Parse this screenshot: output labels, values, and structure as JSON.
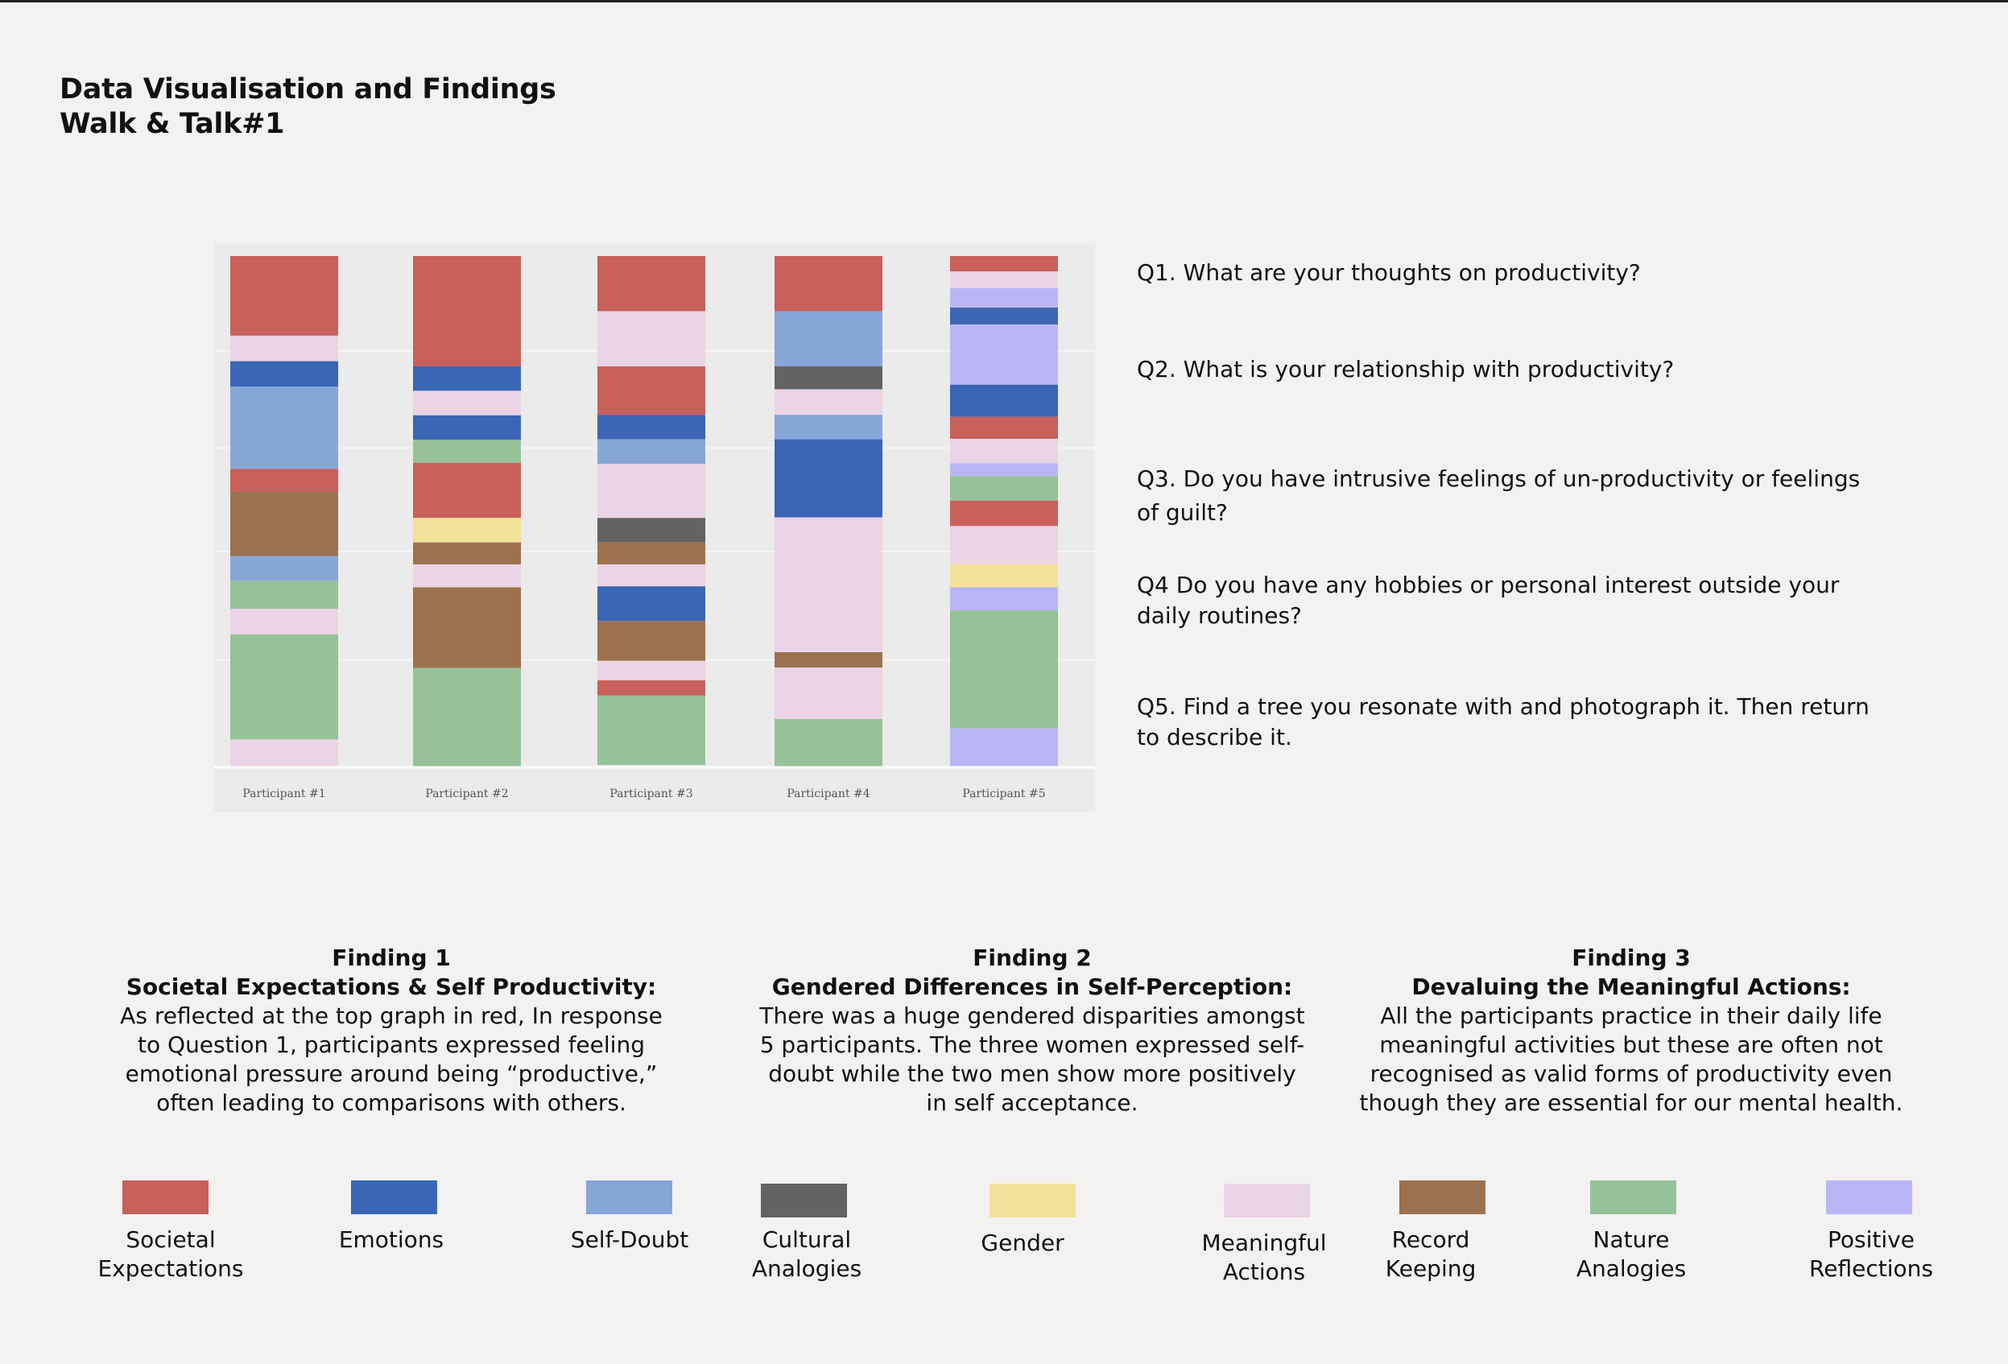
{
  "title": {
    "line1": "Data Visualisation and Findings",
    "line2": "Walk & Talk#1"
  },
  "colors": {
    "societal_expectations": "#c8605c",
    "emotions": "#3a66b5",
    "self_doubt": "#87a6d8",
    "cultural_analogies": "#636363",
    "gender": "#f3e29a",
    "meaningful_actions": "#ebd4e5",
    "record_keeping": "#9c714f",
    "nature_analogies": "#96c29a",
    "positive_reflections": "#bab6f6"
  },
  "chart_data": {
    "type": "bar",
    "stacked": true,
    "categories": [
      "Participant #1",
      "Participant #2",
      "Participant #3",
      "Participant #4",
      "Participant #5"
    ],
    "value_unit": "share of coded segments, stacked top to bottom",
    "ylim": [
      0,
      100
    ],
    "grid": true,
    "participants": [
      {
        "name": "Participant #1",
        "segments": [
          {
            "code": "societal_expectations",
            "value": 15.6
          },
          {
            "code": "meaningful_actions",
            "value": 5.0
          },
          {
            "code": "emotions",
            "value": 5.0
          },
          {
            "code": "self_doubt",
            "value": 16.1
          },
          {
            "code": "societal_expectations",
            "value": 4.5
          },
          {
            "code": "record_keeping",
            "value": 12.6
          },
          {
            "code": "self_doubt",
            "value": 4.8
          },
          {
            "code": "nature_analogies",
            "value": 5.5
          },
          {
            "code": "meaningful_actions",
            "value": 5.0
          },
          {
            "code": "nature_analogies",
            "value": 20.6
          },
          {
            "code": "meaningful_actions",
            "value": 5.3
          }
        ]
      },
      {
        "name": "Participant #2",
        "segments": [
          {
            "code": "societal_expectations",
            "value": 21.6
          },
          {
            "code": "emotions",
            "value": 4.8
          },
          {
            "code": "meaningful_actions",
            "value": 4.8
          },
          {
            "code": "emotions",
            "value": 4.8
          },
          {
            "code": "nature_analogies",
            "value": 4.5
          },
          {
            "code": "societal_expectations",
            "value": 10.8
          },
          {
            "code": "gender",
            "value": 4.8
          },
          {
            "code": "record_keeping",
            "value": 4.3
          },
          {
            "code": "meaningful_actions",
            "value": 4.5
          },
          {
            "code": "record_keeping",
            "value": 15.8
          },
          {
            "code": "nature_analogies",
            "value": 19.3
          }
        ]
      },
      {
        "name": "Participant #3",
        "segments": [
          {
            "code": "societal_expectations",
            "value": 10.8
          },
          {
            "code": "meaningful_actions",
            "value": 10.8
          },
          {
            "code": "societal_expectations",
            "value": 9.5
          },
          {
            "code": "emotions",
            "value": 4.8
          },
          {
            "code": "self_doubt",
            "value": 4.8
          },
          {
            "code": "meaningful_actions",
            "value": 10.6
          },
          {
            "code": "cultural_analogies",
            "value": 4.8
          },
          {
            "code": "record_keeping",
            "value": 4.3
          },
          {
            "code": "meaningful_actions",
            "value": 4.3
          },
          {
            "code": "emotions",
            "value": 6.8
          },
          {
            "code": "record_keeping",
            "value": 7.8
          },
          {
            "code": "meaningful_actions",
            "value": 3.8
          },
          {
            "code": "societal_expectations",
            "value": 3.0
          },
          {
            "code": "nature_analogies",
            "value": 13.6
          }
        ]
      },
      {
        "name": "Participant #4",
        "segments": [
          {
            "code": "societal_expectations",
            "value": 10.8
          },
          {
            "code": "self_doubt",
            "value": 10.8
          },
          {
            "code": "cultural_analogies",
            "value": 4.5
          },
          {
            "code": "meaningful_actions",
            "value": 5.0
          },
          {
            "code": "self_doubt",
            "value": 4.8
          },
          {
            "code": "emotions",
            "value": 15.3
          },
          {
            "code": "meaningful_actions",
            "value": 26.4
          },
          {
            "code": "record_keeping",
            "value": 3.0
          },
          {
            "code": "meaningful_actions",
            "value": 10.1
          },
          {
            "code": "nature_analogies",
            "value": 9.3
          }
        ]
      },
      {
        "name": "Participant #5",
        "segments": [
          {
            "code": "societal_expectations",
            "value": 3.0
          },
          {
            "code": "meaningful_actions",
            "value": 3.3
          },
          {
            "code": "positive_reflections",
            "value": 3.8
          },
          {
            "code": "emotions",
            "value": 3.3
          },
          {
            "code": "positive_reflections",
            "value": 11.8
          },
          {
            "code": "emotions",
            "value": 6.3
          },
          {
            "code": "societal_expectations",
            "value": 4.3
          },
          {
            "code": "meaningful_actions",
            "value": 4.8
          },
          {
            "code": "positive_reflections",
            "value": 2.5
          },
          {
            "code": "nature_analogies",
            "value": 4.8
          },
          {
            "code": "societal_expectations",
            "value": 5.0
          },
          {
            "code": "meaningful_actions",
            "value": 7.5
          },
          {
            "code": "gender",
            "value": 4.5
          },
          {
            "code": "positive_reflections",
            "value": 4.5
          },
          {
            "code": "nature_analogies",
            "value": 23.1
          },
          {
            "code": "positive_reflections",
            "value": 7.5
          }
        ]
      }
    ]
  },
  "questions": [
    {
      "lines": [
        "Q1. What are your thoughts on productivity?"
      ]
    },
    {
      "lines": [
        "Q2. What is your relationship with productivity?"
      ]
    },
    {
      "lines": [
        "Q3. Do you have intrusive feelings of un-productivity or feelings",
        "of guilt?"
      ]
    },
    {
      "lines": [
        "Q4 Do you have any hobbies or personal interest outside your",
        "daily routines?"
      ]
    },
    {
      "lines": [
        "Q5. Find a tree you resonate with and photograph it. Then return",
        "to describe it."
      ]
    }
  ],
  "findings": [
    {
      "title": "Finding 1",
      "subtitle": "Societal Expectations & Self Productivity:",
      "lines": [
        "As reflected at the top graph in red, In response",
        "to Question 1, participants expressed feeling",
        "emotional pressure around being “productive,”",
        "often leading to comparisons with others."
      ]
    },
    {
      "title": "Finding 2",
      "subtitle": "Gendered Differences in Self-Perception:",
      "lines": [
        "There was a huge gendered disparities amongst",
        "5 participants. The three women expressed self-",
        "doubt while the two men show more positively",
        "in self acceptance."
      ]
    },
    {
      "title": "Finding 3",
      "subtitle": "Devaluing the Meaningful Actions:",
      "lines": [
        "All the participants practice in their daily life",
        "meaningful activities but these are often not",
        "recognised as valid forms of productivity even",
        "though they are essential for our mental health."
      ]
    }
  ],
  "legend": [
    {
      "code": "societal_expectations",
      "lines": [
        "Societal",
        "Expectations"
      ]
    },
    {
      "code": "emotions",
      "lines": [
        "Emotions"
      ]
    },
    {
      "code": "self_doubt",
      "lines": [
        "Self-Doubt"
      ]
    },
    {
      "code": "cultural_analogies",
      "lines": [
        "Cultural",
        "Analogies"
      ]
    },
    {
      "code": "gender",
      "lines": [
        "Gender"
      ]
    },
    {
      "code": "meaningful_actions",
      "lines": [
        "Meaningful",
        "Actions"
      ]
    },
    {
      "code": "record_keeping",
      "lines": [
        "Record",
        "Keeping"
      ]
    },
    {
      "code": "nature_analogies",
      "lines": [
        "Nature",
        "Analogies"
      ]
    },
    {
      "code": "positive_reflections",
      "lines": [
        "Positive",
        "Reflections"
      ]
    }
  ]
}
